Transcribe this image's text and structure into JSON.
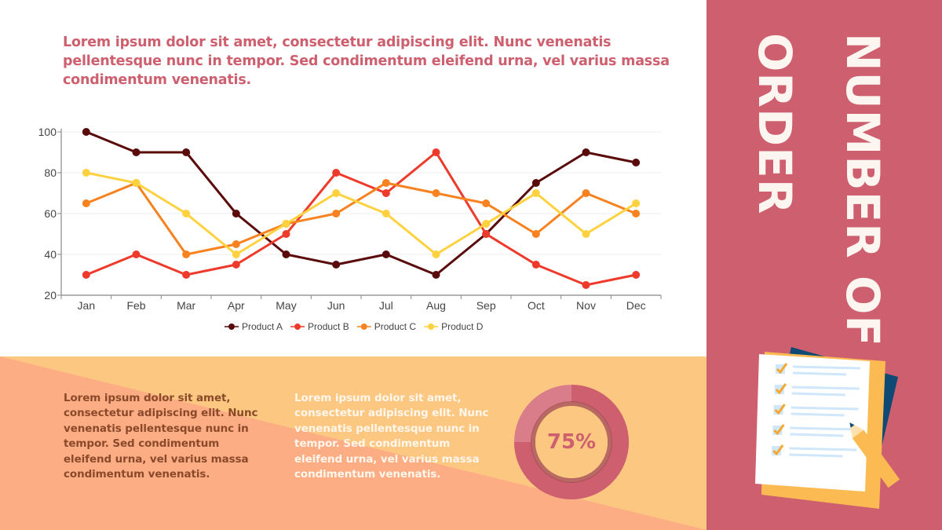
{
  "intro_text": "Lorem ipsum dolor sit amet, consectetur adipiscing elit. Nunc venenatis pellentesque nunc in tempor. Sed condimentum eleifend urna, vel varius massa condimentum venenatis.",
  "sidebar": {
    "title_line1": "NUMBER OF",
    "title_line2": "ORDER",
    "background": "#cd5f6f",
    "illustration": "checklist-with-pencil-icon"
  },
  "bottom": {
    "paragraph1": "Lorem ipsum dolor sit amet, consectetur adipiscing elit. Nunc venenatis pellentesque nunc in tempor. Sed condimentum eleifend urna, vel varius massa condimentum venenatis.",
    "paragraph2": "Lorem ipsum dolor sit amet, consectetur adipiscing elit. Nunc venenatis pellentesque nunc in tempor. Sed condimentum eleifend urna, vel varius massa condimentum venenatis.",
    "donut_percent": 75,
    "donut_label": "75%",
    "colors": {
      "light_bg": "#fcc780",
      "salmon_bg": "#fdad84",
      "donut": "#cd5f6f"
    }
  },
  "chart_data": {
    "type": "line",
    "title": "",
    "xlabel": "",
    "ylabel": "",
    "categories": [
      "Jan",
      "Feb",
      "Mar",
      "Apr",
      "May",
      "Jun",
      "Jul",
      "Aug",
      "Sep",
      "Oct",
      "Nov",
      "Dec"
    ],
    "ylim": [
      20,
      100
    ],
    "yticks": [
      20,
      40,
      60,
      80,
      100
    ],
    "grid": true,
    "legend": "bottom-center",
    "series": [
      {
        "name": "Product A",
        "color": "#5a0a0a",
        "values": [
          100,
          90,
          90,
          60,
          40,
          35,
          40,
          30,
          50,
          75,
          90,
          85
        ]
      },
      {
        "name": "Product B",
        "color": "#ee3a2a",
        "values": [
          30,
          40,
          30,
          35,
          50,
          80,
          70,
          90,
          50,
          35,
          25,
          30
        ]
      },
      {
        "name": "Product C",
        "color": "#f7821f",
        "values": [
          65,
          75,
          40,
          45,
          55,
          60,
          75,
          70,
          65,
          50,
          70,
          60
        ]
      },
      {
        "name": "Product D",
        "color": "#fdd23e",
        "values": [
          80,
          75,
          60,
          40,
          55,
          70,
          60,
          40,
          55,
          70,
          50,
          65
        ]
      }
    ]
  }
}
